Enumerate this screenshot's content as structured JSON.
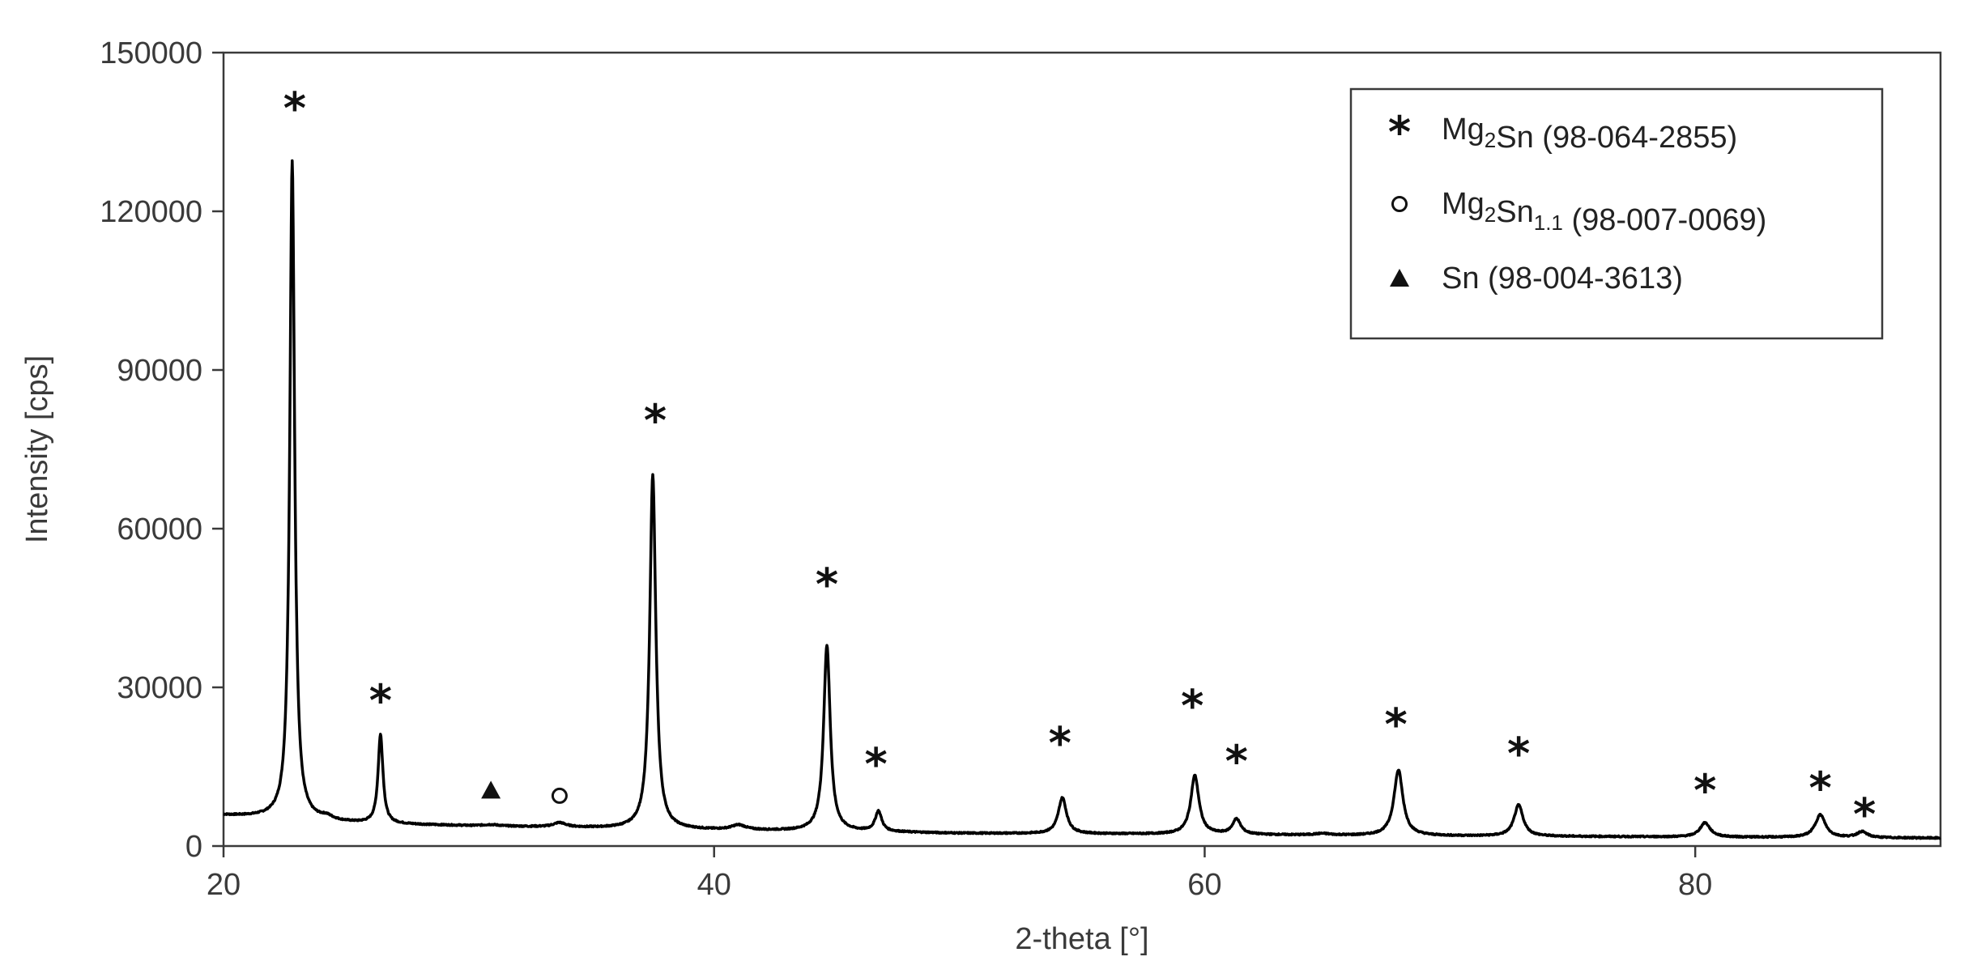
{
  "chart_data": {
    "type": "line",
    "title": "",
    "xlabel": "2-theta [°]",
    "ylabel": "Intensity [cps]",
    "xlim": [
      20,
      90
    ],
    "ylim": [
      0,
      150000
    ],
    "x_ticks": [
      20,
      40,
      60,
      80
    ],
    "x_tick_labels": [
      "20",
      "40",
      "60",
      "80"
    ],
    "y_ticks": [
      0,
      30000,
      60000,
      90000,
      120000,
      150000
    ],
    "y_tick_labels": [
      "0",
      "30000",
      "60000",
      "90000",
      "120000",
      "150000"
    ],
    "grid": false,
    "baseline": [
      [
        20,
        5800
      ],
      [
        22,
        5300
      ],
      [
        24,
        4600
      ],
      [
        26,
        4200
      ],
      [
        30,
        3800
      ],
      [
        34,
        3500
      ],
      [
        38,
        3100
      ],
      [
        42,
        2900
      ],
      [
        46,
        2700
      ],
      [
        50,
        2400
      ],
      [
        55,
        2300
      ],
      [
        60,
        2200
      ],
      [
        65,
        2000
      ],
      [
        70,
        1900
      ],
      [
        75,
        1800
      ],
      [
        80,
        1700
      ],
      [
        85,
        1600
      ],
      [
        90,
        1500
      ]
    ],
    "peaks": [
      {
        "x": 22.8,
        "height": 124500,
        "width": 0.12,
        "phase": "Mg2Sn"
      },
      {
        "x": 24.2,
        "height": 700,
        "width": 0.3,
        "phase": ""
      },
      {
        "x": 26.4,
        "height": 16800,
        "width": 0.12,
        "phase": "Mg2Sn"
      },
      {
        "x": 30.9,
        "height": 250,
        "width": 0.4,
        "phase": "Sn"
      },
      {
        "x": 33.7,
        "height": 800,
        "width": 0.3,
        "phase": "Mg2Sn1.1"
      },
      {
        "x": 37.5,
        "height": 67000,
        "width": 0.15,
        "phase": "Mg2Sn"
      },
      {
        "x": 41.0,
        "height": 900,
        "width": 0.35,
        "phase": ""
      },
      {
        "x": 44.6,
        "height": 35200,
        "width": 0.16,
        "phase": "Mg2Sn"
      },
      {
        "x": 46.7,
        "height": 3800,
        "width": 0.16,
        "phase": "Mg2Sn"
      },
      {
        "x": 54.2,
        "height": 6800,
        "width": 0.2,
        "phase": "Mg2Sn"
      },
      {
        "x": 59.6,
        "height": 11100,
        "width": 0.2,
        "phase": "Mg2Sn"
      },
      {
        "x": 61.3,
        "height": 2900,
        "width": 0.2,
        "phase": "Mg2Sn"
      },
      {
        "x": 64.8,
        "height": 300,
        "width": 0.4,
        "phase": ""
      },
      {
        "x": 67.9,
        "height": 12400,
        "width": 0.22,
        "phase": "Mg2Sn"
      },
      {
        "x": 72.8,
        "height": 5900,
        "width": 0.22,
        "phase": "Mg2Sn"
      },
      {
        "x": 80.4,
        "height": 2700,
        "width": 0.25,
        "phase": "Mg2Sn"
      },
      {
        "x": 85.1,
        "height": 4300,
        "width": 0.25,
        "phase": "Mg2Sn"
      },
      {
        "x": 86.8,
        "height": 1100,
        "width": 0.25,
        "phase": "Mg2Sn"
      }
    ],
    "annotations": [
      {
        "marker": "star",
        "x": 22.9,
        "y": 140000
      },
      {
        "marker": "star",
        "x": 26.4,
        "y": 28000
      },
      {
        "marker": "triangle",
        "x": 30.9,
        "y": 10500
      },
      {
        "marker": "circle",
        "x": 33.7,
        "y": 9500
      },
      {
        "marker": "star",
        "x": 37.6,
        "y": 81000
      },
      {
        "marker": "star",
        "x": 44.6,
        "y": 50000
      },
      {
        "marker": "star",
        "x": 46.6,
        "y": 16000
      },
      {
        "marker": "star",
        "x": 54.1,
        "y": 20000
      },
      {
        "marker": "star",
        "x": 59.5,
        "y": 27000
      },
      {
        "marker": "star",
        "x": 61.3,
        "y": 16500
      },
      {
        "marker": "star",
        "x": 67.8,
        "y": 23500
      },
      {
        "marker": "star",
        "x": 72.8,
        "y": 18000
      },
      {
        "marker": "star",
        "x": 80.4,
        "y": 11000
      },
      {
        "marker": "star",
        "x": 85.1,
        "y": 11500
      },
      {
        "marker": "star",
        "x": 86.9,
        "y": 6500
      }
    ],
    "legend": {
      "placement": "top-right",
      "entries": [
        {
          "marker": "star",
          "name": "Mg",
          "sub1": "2",
          "name2": "Sn",
          "sub2": "",
          "ref": " (98-064-2855)"
        },
        {
          "marker": "circle",
          "name": "Mg",
          "sub1": "2",
          "name2": "Sn",
          "sub2": "1.1",
          "ref": " (98-007-0069)"
        },
        {
          "marker": "triangle",
          "name": "Sn",
          "sub1": "",
          "name2": "",
          "sub2": "",
          "ref": " (98-004-3613)"
        }
      ]
    },
    "line_color": "#000000"
  }
}
